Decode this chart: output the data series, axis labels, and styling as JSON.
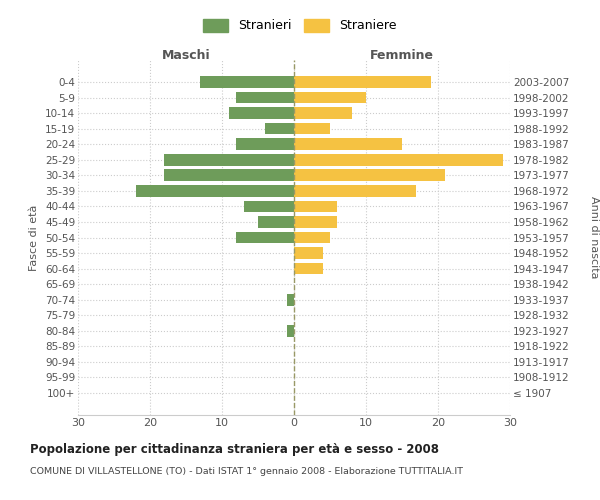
{
  "age_groups": [
    "100+",
    "95-99",
    "90-94",
    "85-89",
    "80-84",
    "75-79",
    "70-74",
    "65-69",
    "60-64",
    "55-59",
    "50-54",
    "45-49",
    "40-44",
    "35-39",
    "30-34",
    "25-29",
    "20-24",
    "15-19",
    "10-14",
    "5-9",
    "0-4"
  ],
  "birth_years": [
    "≤ 1907",
    "1908-1912",
    "1913-1917",
    "1918-1922",
    "1923-1927",
    "1928-1932",
    "1933-1937",
    "1938-1942",
    "1943-1947",
    "1948-1952",
    "1953-1957",
    "1958-1962",
    "1963-1967",
    "1968-1972",
    "1973-1977",
    "1978-1982",
    "1983-1987",
    "1988-1992",
    "1993-1997",
    "1998-2002",
    "2003-2007"
  ],
  "males": [
    0,
    0,
    0,
    0,
    1,
    0,
    1,
    0,
    0,
    0,
    8,
    5,
    7,
    22,
    18,
    18,
    8,
    4,
    9,
    8,
    13
  ],
  "females": [
    0,
    0,
    0,
    0,
    0,
    0,
    0,
    0,
    4,
    4,
    5,
    6,
    6,
    17,
    21,
    29,
    15,
    5,
    8,
    10,
    19
  ],
  "male_color": "#6e9c5a",
  "female_color": "#f5c242",
  "grid_color": "#cccccc",
  "center_line_color": "#999966",
  "background_color": "#ffffff",
  "title": "Popolazione per cittadinanza straniera per età e sesso - 2008",
  "subtitle": "COMUNE DI VILLASTELLONE (TO) - Dati ISTAT 1° gennaio 2008 - Elaborazione TUTTITALIA.IT",
  "left_label": "Maschi",
  "right_label": "Femmine",
  "y_left_label": "Fasce di età",
  "y_right_label": "Anni di nascita",
  "legend_male": "Stranieri",
  "legend_female": "Straniere",
  "xlim": 30,
  "bar_height": 0.75
}
